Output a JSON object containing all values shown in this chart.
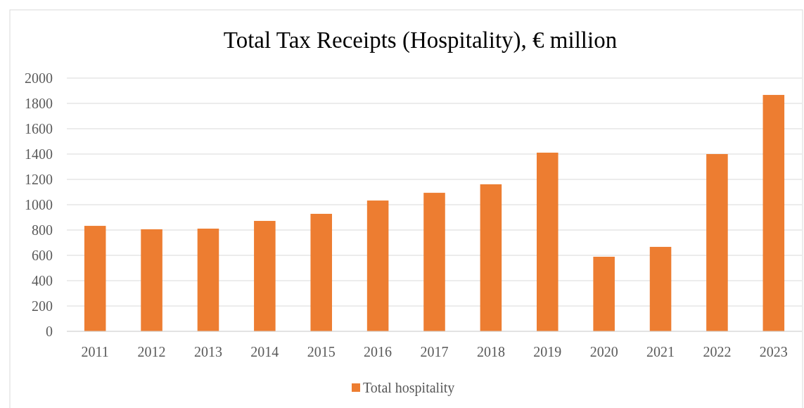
{
  "chart_data": {
    "type": "bar",
    "title": "Total Tax Receipts (Hospitality), € million",
    "categories": [
      "2011",
      "2012",
      "2013",
      "2014",
      "2015",
      "2016",
      "2017",
      "2018",
      "2019",
      "2020",
      "2021",
      "2022",
      "2023"
    ],
    "series": [
      {
        "name": "Total hospitality",
        "color": "#ed7d31",
        "values": [
          833,
          806,
          811,
          872,
          928,
          1033,
          1094,
          1161,
          1411,
          589,
          667,
          1400,
          1867
        ]
      }
    ],
    "ylim": [
      0,
      2000
    ],
    "yticks": [
      0,
      200,
      400,
      600,
      800,
      1000,
      1200,
      1400,
      1600,
      1800,
      2000
    ],
    "grid": "y",
    "legend": "bottom"
  }
}
